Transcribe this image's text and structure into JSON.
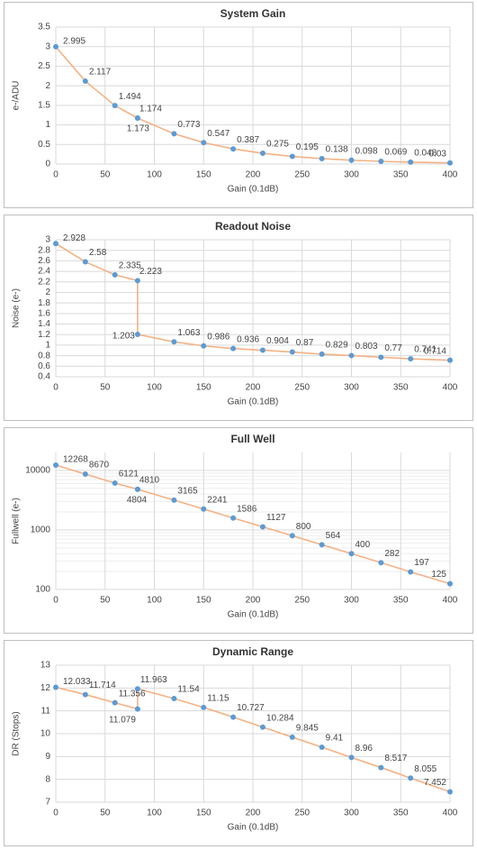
{
  "chart_data": [
    {
      "type": "line",
      "title": "System Gain",
      "x_label": "Gain (0.1dB)",
      "y_label": "e-/ADU",
      "x": [
        0,
        30,
        60,
        83,
        83,
        120,
        150,
        180,
        210,
        240,
        270,
        300,
        330,
        360,
        400
      ],
      "series": [
        {
          "name": "System Gain",
          "color": "#f4b183",
          "marker_color": "#5b9bd5",
          "values": [
            2.995,
            2.117,
            1.494,
            1.174,
            1.173,
            0.773,
            0.547,
            0.387,
            0.275,
            0.195,
            0.138,
            0.098,
            0.069,
            0.048,
            0.03
          ]
        }
      ],
      "xlim": [
        0,
        400
      ],
      "xticks": [
        0,
        50,
        100,
        150,
        200,
        250,
        300,
        350,
        400
      ],
      "ylim": [
        0,
        3.5
      ],
      "yticks": [
        0,
        0.5,
        1,
        1.5,
        2,
        2.5,
        3,
        3.5
      ],
      "grid": true,
      "log_y": false
    },
    {
      "type": "line",
      "title": "Readout Noise",
      "x_label": "Gain (0.1dB)",
      "y_label": "Noise (e-)",
      "x": [
        0,
        30,
        60,
        83,
        83,
        120,
        150,
        180,
        210,
        240,
        270,
        300,
        330,
        360,
        400
      ],
      "series": [
        {
          "name": "Readout Noise",
          "color": "#f4b183",
          "marker_color": "#5b9bd5",
          "values": [
            2.928,
            2.58,
            2.335,
            2.223,
            1.203,
            1.063,
            0.986,
            0.936,
            0.904,
            0.87,
            0.829,
            0.803,
            0.77,
            0.741,
            0.714
          ]
        }
      ],
      "xlim": [
        0,
        400
      ],
      "xticks": [
        0,
        50,
        100,
        150,
        200,
        250,
        300,
        350,
        400
      ],
      "ylim": [
        0.4,
        3
      ],
      "yticks": [
        0.4,
        0.6,
        0.8,
        1,
        1.2,
        1.4,
        1.6,
        1.8,
        2,
        2.2,
        2.4,
        2.6,
        2.8,
        3
      ],
      "grid": true,
      "log_y": false
    },
    {
      "type": "line",
      "title": "Full Well",
      "x_label": "Gain (0.1dB)",
      "y_label": "Fullwell (e-)",
      "x": [
        0,
        30,
        60,
        83,
        83,
        120,
        150,
        180,
        210,
        240,
        270,
        300,
        330,
        360,
        400
      ],
      "series": [
        {
          "name": "Full Well",
          "color": "#f4b183",
          "marker_color": "#5b9bd5",
          "values": [
            12268,
            8670,
            6121,
            4810,
            4804,
            3165,
            2241,
            1586,
            1127,
            800,
            564,
            400,
            282,
            197,
            125
          ]
        }
      ],
      "xlim": [
        0,
        400
      ],
      "xticks": [
        0,
        50,
        100,
        150,
        200,
        250,
        300,
        350,
        400
      ],
      "ylim": [
        100,
        20000
      ],
      "yticks": [
        100,
        1000,
        10000
      ],
      "grid": true,
      "log_y": true
    },
    {
      "type": "line",
      "title": "Dynamic Range",
      "x_label": "Gain (0.1dB)",
      "y_label": "DR (Stops)",
      "x": [
        0,
        30,
        60,
        83,
        83,
        120,
        150,
        180,
        210,
        240,
        270,
        300,
        330,
        360,
        400
      ],
      "series": [
        {
          "name": "Dynamic Range",
          "color": "#f4b183",
          "marker_color": "#5b9bd5",
          "values": [
            12.033,
            11.714,
            11.356,
            11.079,
            11.963,
            11.54,
            11.15,
            10.727,
            10.284,
            9.845,
            9.41,
            8.96,
            8.517,
            8.055,
            7.452
          ]
        }
      ],
      "xlim": [
        0,
        400
      ],
      "xticks": [
        0,
        50,
        100,
        150,
        200,
        250,
        300,
        350,
        400
      ],
      "ylim": [
        7,
        13
      ],
      "yticks": [
        7,
        8,
        9,
        10,
        11,
        12,
        13
      ],
      "grid": true,
      "log_y": false
    }
  ]
}
